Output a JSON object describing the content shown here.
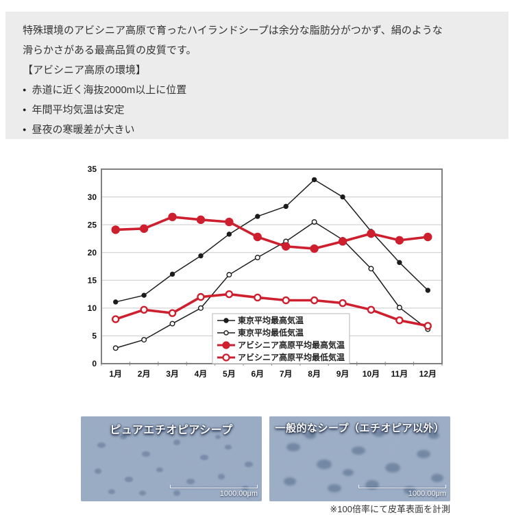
{
  "intro": {
    "line1": "特殊環境のアビシニア高原で育ったハイランドシープは余分な脂肪分がつかず、絹のような",
    "line2": "滑らかさがある最高品質の皮質です。",
    "heading": "【アビシニア高原の環境】",
    "bullets": [
      "赤道に近く海抜2000m以上に位置",
      "年間平均気温は安定",
      "昼夜の寒暖差が大きい"
    ]
  },
  "chart_data": {
    "type": "line",
    "title": "",
    "xlabel": "",
    "ylabel": "",
    "categories": [
      "1月",
      "2月",
      "3月",
      "4月",
      "5月",
      "6月",
      "7月",
      "8月",
      "9月",
      "10月",
      "11月",
      "12月"
    ],
    "ylim": [
      0,
      35
    ],
    "ytick": 5,
    "grid": true,
    "legend_position": "inside-bottom-center",
    "series": [
      {
        "name": "東京平均最高気温",
        "color": "#1c1c1c",
        "marker": "filled",
        "thick": false,
        "values": [
          11.1,
          12.3,
          16.1,
          19.4,
          23.3,
          26.5,
          28.3,
          33.1,
          30.0,
          23.8,
          18.2,
          13.2
        ]
      },
      {
        "name": "東京平均最低気温",
        "color": "#1c1c1c",
        "marker": "open",
        "thick": false,
        "values": [
          2.8,
          4.3,
          7.2,
          10.0,
          16.0,
          19.1,
          22.0,
          25.5,
          22.3,
          17.1,
          10.1,
          6.2
        ]
      },
      {
        "name": "アビシニア高原平均最高気温",
        "color": "#cd1f2e",
        "marker": "filled",
        "thick": true,
        "values": [
          24.1,
          24.3,
          26.4,
          25.9,
          25.5,
          22.8,
          21.1,
          20.7,
          22.0,
          23.4,
          22.2,
          22.8
        ]
      },
      {
        "name": "アビシニア高原平均最低気温",
        "color": "#cd1f2e",
        "marker": "open",
        "thick": true,
        "values": [
          8.0,
          9.7,
          9.1,
          12.0,
          12.5,
          11.9,
          11.4,
          11.4,
          10.9,
          9.7,
          7.8,
          6.8
        ]
      }
    ]
  },
  "photos": [
    {
      "label": "ピュアエチオピアシープ",
      "scale": "1000.00μm"
    },
    {
      "label": "一般的なシープ（エチオピア以外）",
      "scale": "1000.00μm"
    }
  ],
  "caption": "※100倍率にて皮革表面を計測",
  "colors": {
    "accent_red": "#cd1f2e",
    "panel_bg": "#ececec",
    "text": "#333333"
  }
}
